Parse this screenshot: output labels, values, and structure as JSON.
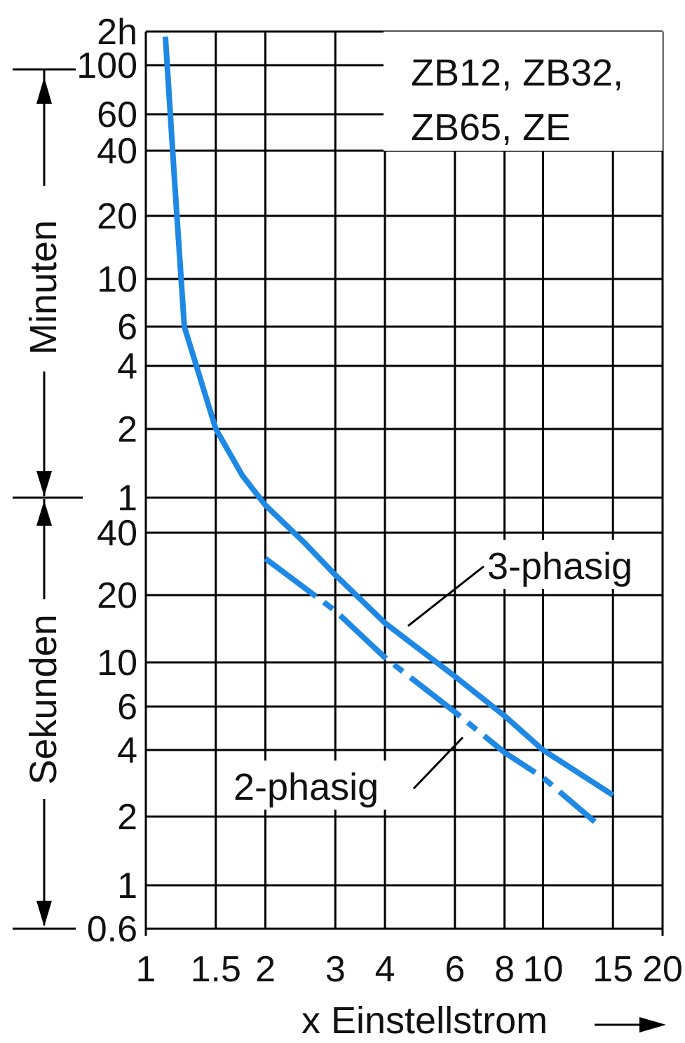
{
  "chart_data": {
    "type": "line",
    "title": "",
    "xlabel": "x Einstellstrom",
    "x_scale": "log",
    "x_ticks": [
      "1",
      "1.5",
      "2",
      "3",
      "4",
      "6",
      "8",
      "10",
      "15",
      "20"
    ],
    "y_scale": "log",
    "y_ticks_minutes": [
      "2h",
      "100",
      "60",
      "40",
      "20",
      "10",
      "6",
      "4",
      "2",
      "1"
    ],
    "y_ticks_seconds": [
      "40",
      "20",
      "10",
      "6",
      "4",
      "2",
      "1",
      "0.6"
    ],
    "y_label_minutes": "Minuten",
    "y_label_seconds": "Sekunden",
    "legend_box": [
      "ZB12, ZB32,",
      "ZB65, ZE"
    ],
    "grid": true,
    "series": [
      {
        "name": "3-phasig",
        "style": "solid",
        "color": "#1e88e5",
        "points": [
          [
            1.12,
            7000
          ],
          [
            1.18,
            1800
          ],
          [
            1.25,
            360
          ],
          [
            1.35,
            230
          ],
          [
            1.5,
            120
          ],
          [
            1.75,
            75
          ],
          [
            2,
            55
          ],
          [
            2.5,
            36
          ],
          [
            3,
            25
          ],
          [
            4,
            15
          ],
          [
            6,
            8.5
          ],
          [
            8,
            5.5
          ],
          [
            10,
            4
          ],
          [
            15,
            2.5
          ]
        ]
      },
      {
        "name": "2-phasig",
        "style": "dash-dot",
        "color": "#1e88e5",
        "points": [
          [
            2,
            30
          ],
          [
            3,
            17
          ],
          [
            4,
            10.5
          ],
          [
            6,
            5.7
          ],
          [
            8,
            3.9
          ],
          [
            10,
            3.0
          ],
          [
            13.5,
            1.9
          ]
        ]
      }
    ]
  }
}
